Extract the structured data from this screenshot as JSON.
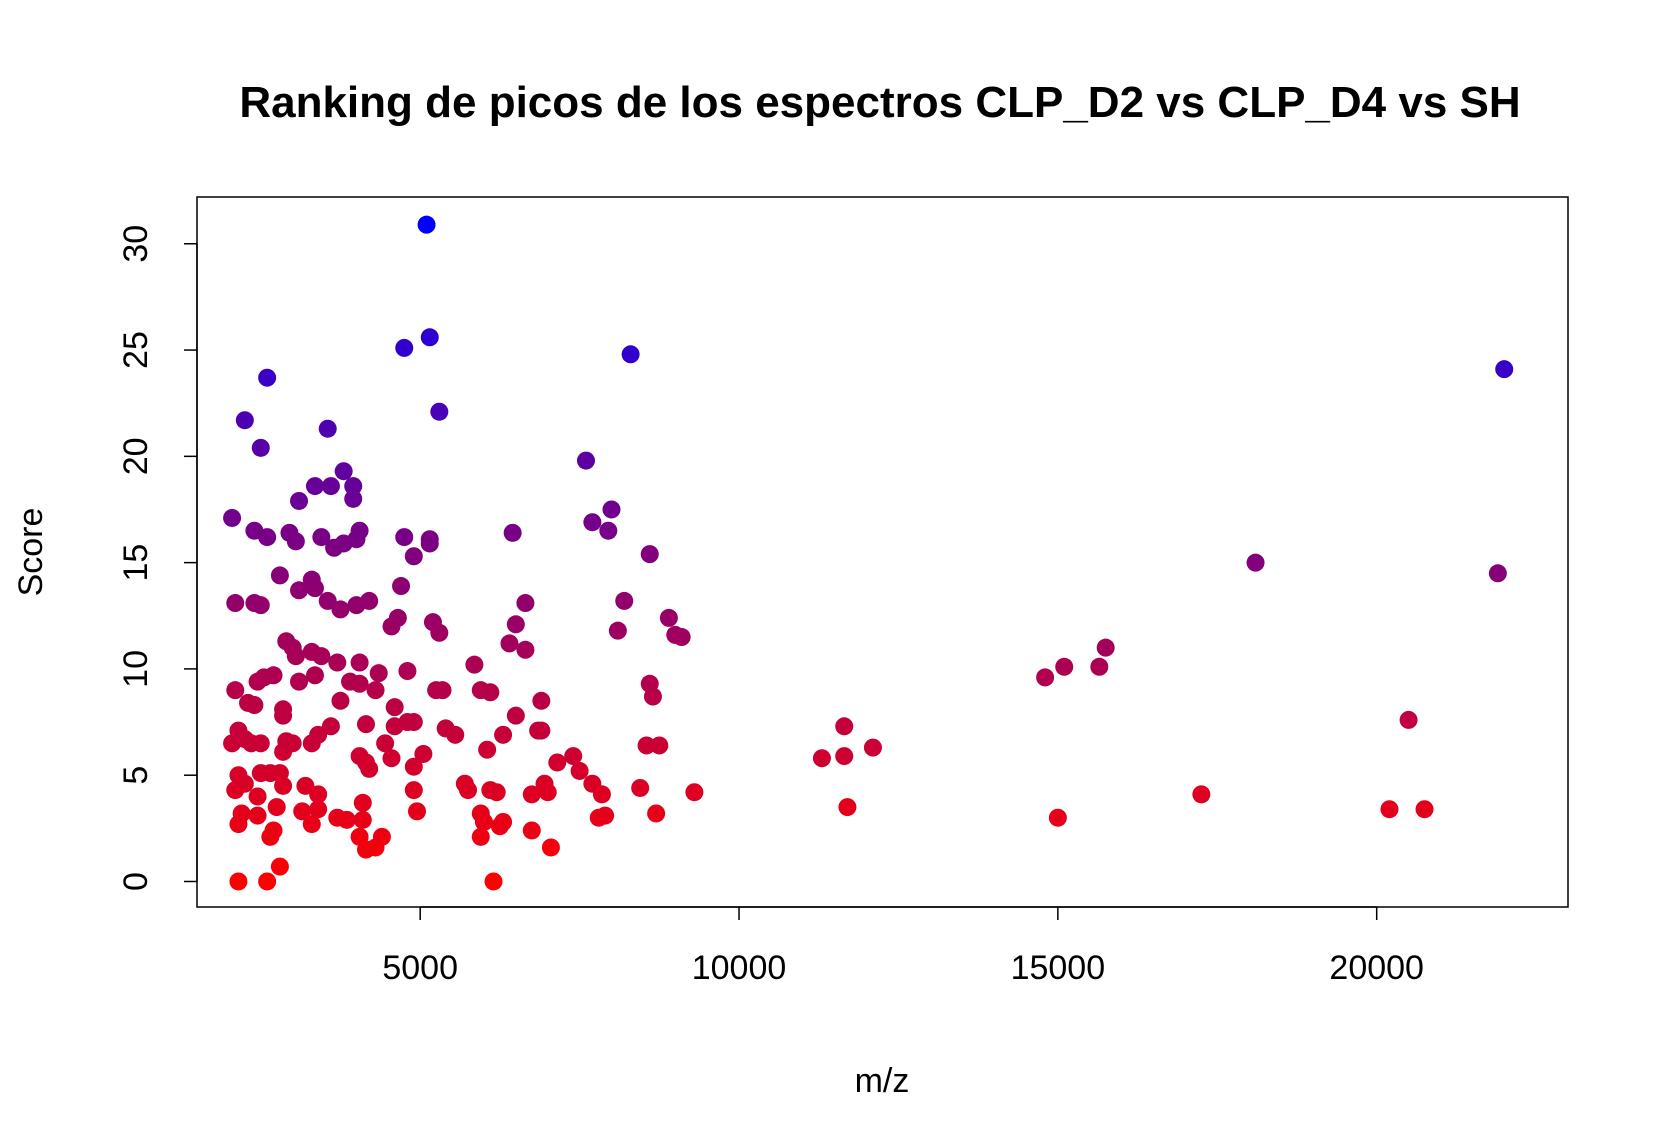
{
  "chart_data": {
    "type": "scatter",
    "title": "Ranking de picos de los espectros CLP_D2 vs CLP_D4 vs SH",
    "xlabel": "m/z",
    "ylabel": "Score",
    "xlim": [
      1500,
      23000
    ],
    "ylim": [
      -1.2,
      32.2
    ],
    "xticks": [
      5000,
      10000,
      15000,
      20000
    ],
    "xtick_labels": [
      "5000",
      "10000",
      "15000",
      "20000"
    ],
    "yticks": [
      0,
      5,
      10,
      15,
      20,
      25,
      30
    ],
    "ytick_labels": [
      "0",
      "5",
      "10",
      "15",
      "20",
      "25",
      "30"
    ],
    "grid": false,
    "legend": "none",
    "color_scale": {
      "low": "#ff0000",
      "high": "#0000ff",
      "encodes": "score"
    },
    "points": [
      [
        5100,
        30.9
      ],
      [
        5150,
        25.6
      ],
      [
        4750,
        25.1
      ],
      [
        8300,
        24.8
      ],
      [
        22000,
        24.1
      ],
      [
        2600,
        23.7
      ],
      [
        2250,
        21.7
      ],
      [
        3550,
        21.3
      ],
      [
        2500,
        20.4
      ],
      [
        5300,
        22.1
      ],
      [
        3800,
        19.3
      ],
      [
        7600,
        19.8
      ],
      [
        3950,
        18.6
      ],
      [
        3950,
        18.0
      ],
      [
        3600,
        18.6
      ],
      [
        3350,
        18.6
      ],
      [
        3100,
        17.9
      ],
      [
        8000,
        17.5
      ],
      [
        2050,
        17.1
      ],
      [
        7700,
        16.9
      ],
      [
        2400,
        16.5
      ],
      [
        2600,
        16.2
      ],
      [
        2950,
        16.4
      ],
      [
        3050,
        16.0
      ],
      [
        3450,
        16.2
      ],
      [
        3650,
        15.7
      ],
      [
        3800,
        15.9
      ],
      [
        4000,
        16.1
      ],
      [
        4050,
        16.5
      ],
      [
        4750,
        16.2
      ],
      [
        4900,
        15.3
      ],
      [
        5150,
        16.1
      ],
      [
        5150,
        15.9
      ],
      [
        6450,
        16.4
      ],
      [
        7950,
        16.5
      ],
      [
        8600,
        15.4
      ],
      [
        18100,
        15.0
      ],
      [
        21900,
        14.5
      ],
      [
        2800,
        14.4
      ],
      [
        3100,
        13.7
      ],
      [
        3300,
        14.2
      ],
      [
        3350,
        13.8
      ],
      [
        3550,
        13.2
      ],
      [
        3750,
        12.8
      ],
      [
        4000,
        13.0
      ],
      [
        4200,
        13.2
      ],
      [
        2100,
        13.1
      ],
      [
        2400,
        13.1
      ],
      [
        2500,
        13.0
      ],
      [
        4700,
        13.9
      ],
      [
        6650,
        13.1
      ],
      [
        8200,
        13.2
      ],
      [
        4550,
        12.0
      ],
      [
        4650,
        12.4
      ],
      [
        5200,
        12.2
      ],
      [
        5300,
        11.7
      ],
      [
        6500,
        12.1
      ],
      [
        8100,
        11.8
      ],
      [
        8900,
        12.4
      ],
      [
        9000,
        11.6
      ],
      [
        9100,
        11.5
      ],
      [
        2900,
        11.3
      ],
      [
        3000,
        11.0
      ],
      [
        3050,
        10.6
      ],
      [
        3300,
        10.8
      ],
      [
        3450,
        10.6
      ],
      [
        3700,
        10.3
      ],
      [
        4050,
        10.3
      ],
      [
        6400,
        11.2
      ],
      [
        6650,
        10.9
      ],
      [
        15750,
        11.0
      ],
      [
        2100,
        9.0
      ],
      [
        2300,
        8.4
      ],
      [
        2400,
        8.3
      ],
      [
        2450,
        9.4
      ],
      [
        2550,
        9.6
      ],
      [
        2700,
        9.7
      ],
      [
        2850,
        8.1
      ],
      [
        2850,
        7.8
      ],
      [
        3100,
        9.4
      ],
      [
        3350,
        9.7
      ],
      [
        3750,
        8.5
      ],
      [
        3900,
        9.4
      ],
      [
        4050,
        9.3
      ],
      [
        4300,
        9.0
      ],
      [
        4350,
        9.8
      ],
      [
        4600,
        8.2
      ],
      [
        4800,
        9.9
      ],
      [
        5250,
        9.0
      ],
      [
        5350,
        9.0
      ],
      [
        5850,
        10.2
      ],
      [
        5950,
        9.0
      ],
      [
        6100,
        8.9
      ],
      [
        8600,
        9.3
      ],
      [
        8650,
        8.7
      ],
      [
        6900,
        8.5
      ],
      [
        14800,
        9.6
      ],
      [
        15100,
        10.1
      ],
      [
        15650,
        10.1
      ],
      [
        11650,
        7.3
      ],
      [
        20500,
        7.6
      ],
      [
        2050,
        6.5
      ],
      [
        2150,
        7.1
      ],
      [
        2250,
        6.7
      ],
      [
        2350,
        6.5
      ],
      [
        2500,
        6.5
      ],
      [
        2850,
        6.1
      ],
      [
        2900,
        6.6
      ],
      [
        3000,
        6.5
      ],
      [
        3300,
        6.5
      ],
      [
        3400,
        6.9
      ],
      [
        3600,
        7.3
      ],
      [
        4150,
        7.4
      ],
      [
        4450,
        6.5
      ],
      [
        4600,
        7.3
      ],
      [
        4800,
        7.5
      ],
      [
        4900,
        7.5
      ],
      [
        5400,
        7.2
      ],
      [
        5550,
        6.9
      ],
      [
        6050,
        6.2
      ],
      [
        6300,
        6.9
      ],
      [
        6500,
        7.8
      ],
      [
        6850,
        7.1
      ],
      [
        6900,
        7.1
      ],
      [
        8550,
        6.4
      ],
      [
        8750,
        6.4
      ],
      [
        4050,
        5.9
      ],
      [
        4150,
        5.6
      ],
      [
        4200,
        5.3
      ],
      [
        4550,
        5.8
      ],
      [
        4900,
        5.4
      ],
      [
        5050,
        6.0
      ],
      [
        7150,
        5.6
      ],
      [
        7400,
        5.9
      ],
      [
        7500,
        5.2
      ],
      [
        11300,
        5.8
      ],
      [
        11650,
        5.9
      ],
      [
        12100,
        6.3
      ],
      [
        2100,
        4.3
      ],
      [
        2150,
        5.0
      ],
      [
        2250,
        4.6
      ],
      [
        2450,
        4.0
      ],
      [
        2500,
        5.1
      ],
      [
        2650,
        5.1
      ],
      [
        2800,
        5.1
      ],
      [
        2850,
        4.5
      ],
      [
        3200,
        4.5
      ],
      [
        3400,
        4.1
      ],
      [
        4900,
        4.3
      ],
      [
        5700,
        4.6
      ],
      [
        5750,
        4.3
      ],
      [
        6100,
        4.3
      ],
      [
        6200,
        4.2
      ],
      [
        6750,
        4.1
      ],
      [
        6950,
        4.6
      ],
      [
        7000,
        4.2
      ],
      [
        7700,
        4.6
      ],
      [
        7850,
        4.1
      ],
      [
        8450,
        4.4
      ],
      [
        9300,
        4.2
      ],
      [
        17250,
        4.1
      ],
      [
        2150,
        2.7
      ],
      [
        2200,
        3.2
      ],
      [
        2450,
        3.1
      ],
      [
        2650,
        2.1
      ],
      [
        2700,
        2.4
      ],
      [
        2750,
        3.5
      ],
      [
        3150,
        3.3
      ],
      [
        3300,
        2.7
      ],
      [
        3400,
        3.4
      ],
      [
        3700,
        3.0
      ],
      [
        3850,
        2.9
      ],
      [
        4050,
        2.1
      ],
      [
        4100,
        2.9
      ],
      [
        4100,
        3.7
      ],
      [
        4150,
        1.5
      ],
      [
        4300,
        1.6
      ],
      [
        4400,
        2.1
      ],
      [
        4950,
        3.3
      ],
      [
        5950,
        3.2
      ],
      [
        6000,
        2.8
      ],
      [
        5950,
        2.1
      ],
      [
        6250,
        2.6
      ],
      [
        6300,
        2.8
      ],
      [
        6750,
        2.4
      ],
      [
        7050,
        1.6
      ],
      [
        7800,
        3.0
      ],
      [
        7900,
        3.1
      ],
      [
        8700,
        3.2
      ],
      [
        11700,
        3.5
      ],
      [
        15000,
        3.0
      ],
      [
        20200,
        3.4
      ],
      [
        20750,
        3.4
      ],
      [
        2150,
        0.0
      ],
      [
        2600,
        0.0
      ],
      [
        2800,
        0.7
      ],
      [
        6150,
        0.0
      ]
    ]
  }
}
